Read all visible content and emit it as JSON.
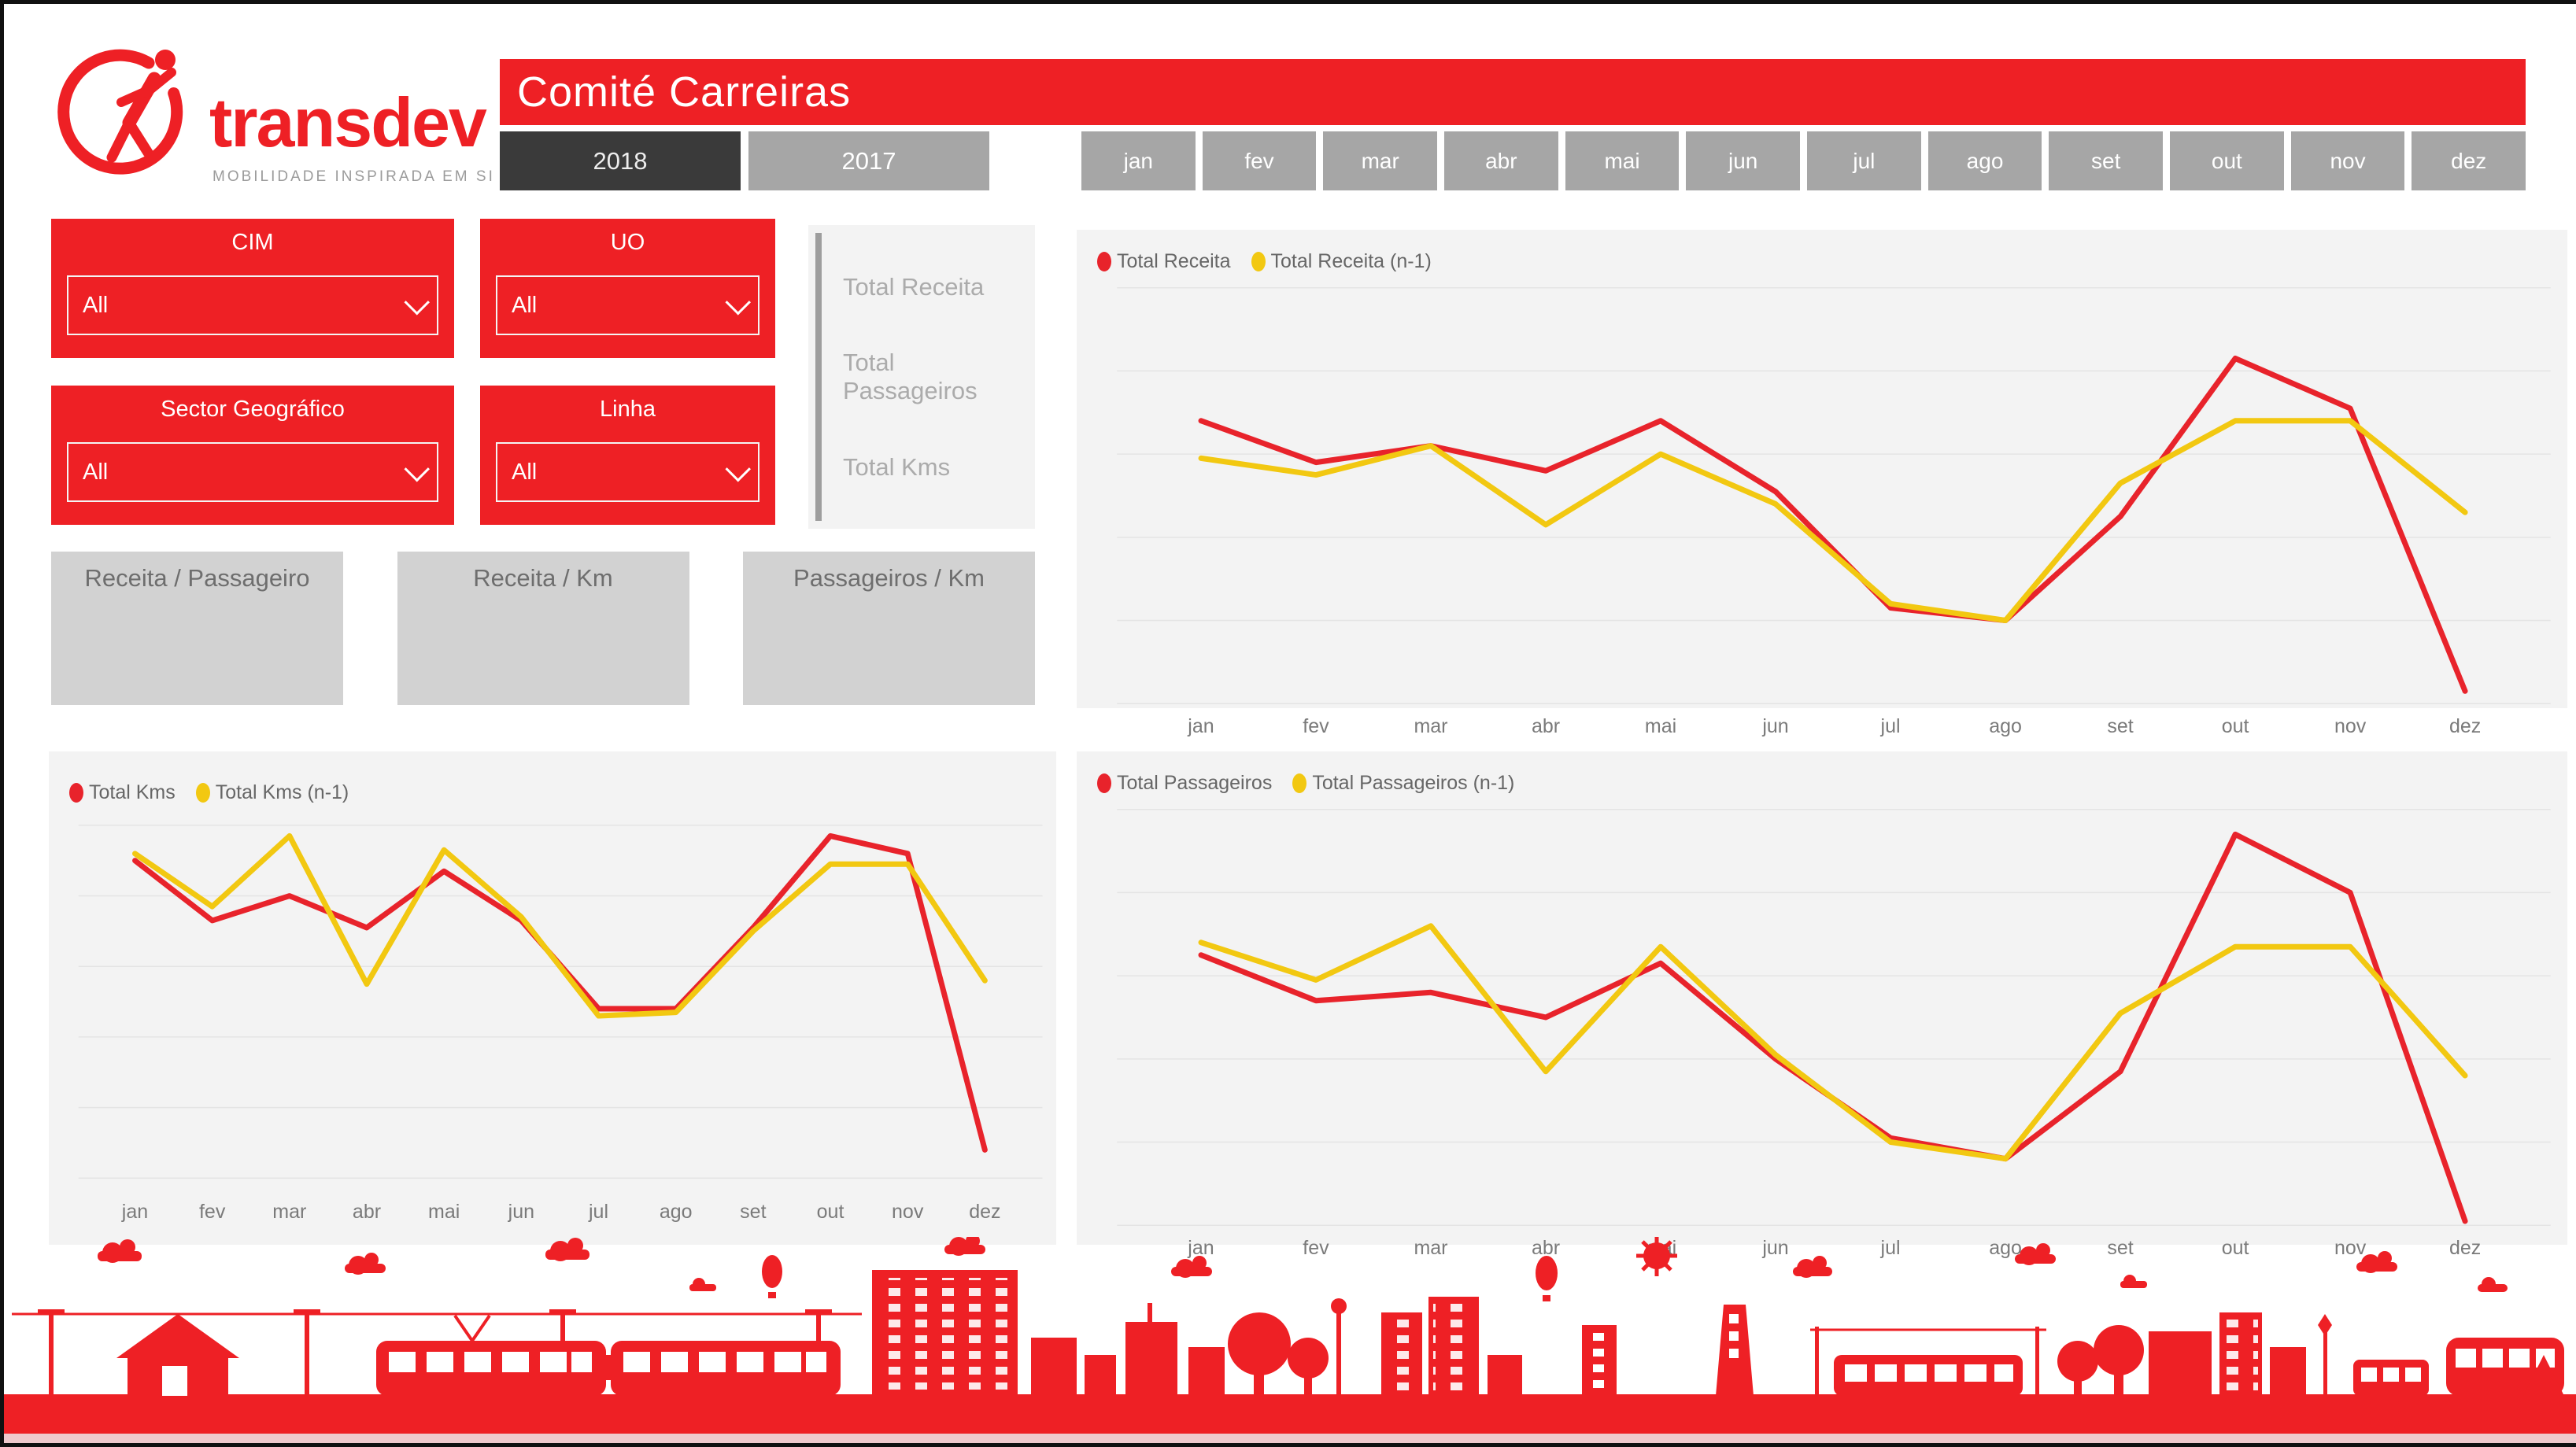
{
  "brand": {
    "name": "transdev",
    "tagline": "MOBILIDADE INSPIRADA EM SI"
  },
  "header": {
    "title": "Comité Carreiras"
  },
  "years": [
    {
      "label": "2018",
      "selected": true
    },
    {
      "label": "2017",
      "selected": false
    }
  ],
  "months": [
    "jan",
    "fev",
    "mar",
    "abr",
    "mai",
    "jun",
    "jul",
    "ago",
    "set",
    "out",
    "nov",
    "dez"
  ],
  "filters": [
    {
      "title": "CIM",
      "value": "All"
    },
    {
      "title": "UO",
      "value": "All"
    },
    {
      "title": "Sector Geográfico",
      "value": "All"
    },
    {
      "title": "Linha",
      "value": "All"
    }
  ],
  "metric_menu": {
    "items": [
      "Total Receita",
      "Total Passageiros",
      "Total Kms"
    ]
  },
  "kpi_cards": [
    {
      "title": "Receita / Passageiro"
    },
    {
      "title": "Receita / Km"
    },
    {
      "title": "Passageiros / Km"
    }
  ],
  "colors": {
    "brand_red": "#EE2025",
    "series_red": "#E8232B",
    "series_yellow": "#F2C811",
    "selected_dark": "#3A3A3A",
    "button_gray": "#A6A6A6",
    "panel_gray": "#F3F3F3",
    "card_gray": "#D2D2D2"
  },
  "chart_data": [
    {
      "id": "receita",
      "type": "line",
      "categories": [
        "jan",
        "fev",
        "mar",
        "abr",
        "mai",
        "jun",
        "jul",
        "ago",
        "set",
        "out",
        "nov",
        "dez"
      ],
      "series": [
        {
          "name": "Total Receita",
          "color": "#E8232B",
          "values": [
            68,
            58,
            62,
            56,
            68,
            51,
            23,
            20,
            45,
            83,
            71,
            3
          ]
        },
        {
          "name": "Total Receita (n-1)",
          "color": "#F2C811",
          "values": [
            59,
            55,
            62,
            43,
            60,
            48,
            24,
            20,
            53,
            68,
            68,
            46
          ]
        }
      ],
      "xlabel": "",
      "ylabel": "",
      "ylim": [
        0,
        100
      ],
      "grid": true,
      "y_tick_labels_visible": false,
      "legend_position": "top-left"
    },
    {
      "id": "kms",
      "type": "line",
      "categories": [
        "jan",
        "fev",
        "mar",
        "abr",
        "mai",
        "jun",
        "jul",
        "ago",
        "set",
        "out",
        "nov",
        "dez"
      ],
      "series": [
        {
          "name": "Total Kms",
          "color": "#E8232B",
          "values": [
            90,
            73,
            80,
            71,
            87,
            73,
            48,
            48,
            71,
            97,
            92,
            8
          ]
        },
        {
          "name": "Total Kms (n-1)",
          "color": "#F2C811",
          "values": [
            92,
            77,
            97,
            55,
            93,
            74,
            46,
            47,
            70,
            89,
            89,
            56
          ]
        }
      ],
      "xlabel": "",
      "ylabel": "",
      "ylim": [
        0,
        100
      ],
      "grid": true,
      "y_tick_labels_visible": false,
      "legend_position": "top-left"
    },
    {
      "id": "passageiros",
      "type": "line",
      "categories": [
        "jan",
        "fev",
        "mar",
        "abr",
        "mai",
        "jun",
        "jul",
        "ago",
        "set",
        "out",
        "nov",
        "dez"
      ],
      "series": [
        {
          "name": "Total Passageiros",
          "color": "#E8232B",
          "values": [
            65,
            54,
            56,
            50,
            63,
            40,
            21,
            16,
            37,
            94,
            80,
            1
          ]
        },
        {
          "name": "Total Passageiros (n-1)",
          "color": "#F2C811",
          "values": [
            68,
            59,
            72,
            37,
            67,
            41,
            20,
            16,
            51,
            67,
            67,
            36
          ]
        }
      ],
      "xlabel": "",
      "ylabel": "",
      "ylim": [
        0,
        100
      ],
      "grid": true,
      "y_tick_labels_visible": false,
      "legend_position": "top-left"
    }
  ]
}
